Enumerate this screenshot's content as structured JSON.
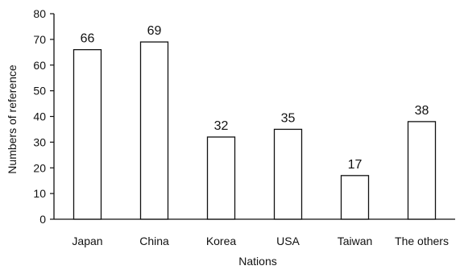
{
  "chart_data": {
    "type": "bar",
    "title": "",
    "xlabel": "Nations",
    "ylabel": "Numbers of reference",
    "categories": [
      "Japan",
      "China",
      "Korea",
      "USA",
      "Taiwan",
      "The others"
    ],
    "values": [
      66,
      69,
      32,
      35,
      17,
      38
    ],
    "data_labels": [
      "66",
      "69",
      "32",
      "35",
      "17",
      "38"
    ],
    "ylim": [
      0,
      80
    ],
    "yticks": [
      0,
      10,
      20,
      30,
      40,
      50,
      60,
      70,
      80
    ],
    "grid": false,
    "legend": "none",
    "colors": {
      "bar_fill": "#ffffff",
      "bar_stroke": "#111111",
      "axis": "#111111"
    }
  }
}
